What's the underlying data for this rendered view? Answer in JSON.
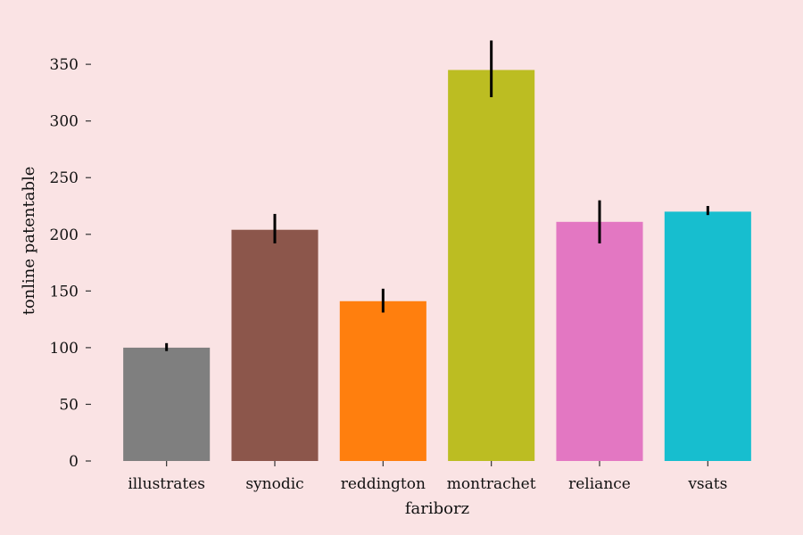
{
  "chart_data": {
    "type": "bar",
    "title": "",
    "xlabel": "fariborz",
    "ylabel": "tonline patentable",
    "categories": [
      "illustrates",
      "synodic",
      "reddington",
      "montrachet",
      "reliance",
      "vsats"
    ],
    "values": [
      100,
      204,
      141,
      345,
      211,
      220
    ],
    "error_low": [
      97,
      192,
      131,
      321,
      192,
      217
    ],
    "error_high": [
      104,
      218,
      152,
      371,
      230,
      225
    ],
    "colors": [
      "#7f7f7f",
      "#8c564b",
      "#ff7f0e",
      "#bcbd22",
      "#e377c2",
      "#17becf"
    ],
    "ylim": [
      0,
      380
    ],
    "yticks": [
      0,
      50,
      100,
      150,
      200,
      250,
      300,
      350
    ],
    "grid": false,
    "background": "#fae3e4"
  }
}
